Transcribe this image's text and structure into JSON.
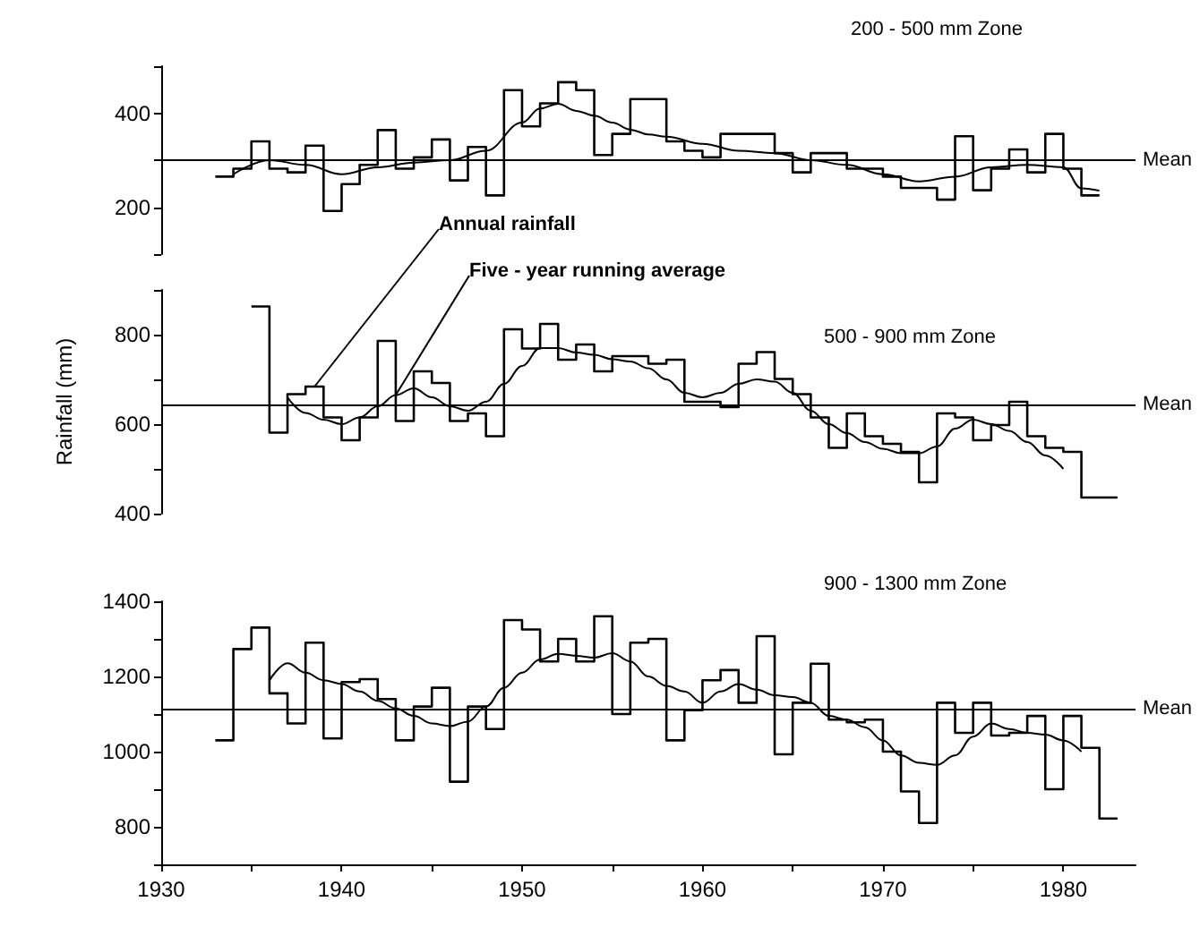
{
  "chart_data": [
    {
      "type": "step",
      "title": "200 - 500 mm Zone",
      "xlim": [
        1930,
        1984
      ],
      "ylim": [
        100,
        500
      ],
      "yticks": [
        {
          "value": 100,
          "label": null
        },
        200,
        {
          "value": 300,
          "label": null
        },
        400,
        {
          "value": 500,
          "label": null
        }
      ],
      "tick_labels": "y",
      "grid": false,
      "marker": "none",
      "ref_lines": [
        {
          "axis": "y",
          "value": 300,
          "label": "Mean"
        }
      ],
      "series": [
        {
          "type": "step",
          "color": "#000000",
          "x": [
            1933,
            1934,
            1935,
            1936,
            1937,
            1938,
            1939,
            1940,
            1941,
            1942,
            1943,
            1944,
            1945,
            1946,
            1947,
            1948,
            1949,
            1950,
            1951,
            1952,
            1953,
            1954,
            1955,
            1956,
            1957,
            1958,
            1959,
            1960,
            1961,
            1962,
            1963,
            1964,
            1965,
            1966,
            1967,
            1968,
            1969,
            1970,
            1971,
            1972,
            1973,
            1974,
            1975,
            1976,
            1977,
            1978,
            1979,
            1980,
            1981,
            1982
          ],
          "values": [
            265,
            282,
            340,
            282,
            274,
            331,
            192,
            249,
            290,
            364,
            282,
            306,
            344,
            257,
            328,
            225,
            449,
            372,
            421,
            466,
            449,
            311,
            356,
            430,
            430,
            340,
            320,
            306,
            356,
            356,
            356,
            315,
            274,
            315,
            315,
            282,
            282,
            265,
            241,
            241,
            216,
            351,
            236,
            282,
            323,
            274,
            356,
            282,
            225,
            225
          ]
        },
        {
          "type": "line",
          "color": "#000000",
          "x": [
            1934,
            1936,
            1938,
            1940,
            1942,
            1944,
            1946,
            1948,
            1950,
            1951,
            1952,
            1953,
            1954,
            1955,
            1956,
            1957,
            1958,
            1960,
            1962,
            1964,
            1966,
            1968,
            1970,
            1972,
            1974,
            1976,
            1978,
            1980,
            1981,
            1982
          ],
          "values": [
            270,
            300,
            290,
            270,
            285,
            295,
            300,
            320,
            380,
            410,
            420,
            405,
            395,
            380,
            365,
            355,
            350,
            335,
            320,
            315,
            300,
            290,
            270,
            255,
            265,
            285,
            290,
            285,
            240,
            235
          ]
        }
      ]
    },
    {
      "type": "step",
      "title": "500 - 900 mm Zone",
      "ylabel": "Rainfall (mm)",
      "xlim": [
        1930,
        1984
      ],
      "ylim": [
        400,
        900
      ],
      "yticks": [
        400,
        {
          "value": 500,
          "label": null
        },
        600,
        {
          "value": 700,
          "label": null
        },
        800,
        {
          "value": 900,
          "label": null
        }
      ],
      "tick_labels": "y",
      "grid": false,
      "marker": "none",
      "ref_lines": [
        {
          "axis": "y",
          "value": 645,
          "label": "Mean"
        }
      ],
      "series": [
        {
          "type": "step",
          "name": "Annual rainfall",
          "color": "#000000",
          "x": [
            1935,
            1936,
            1937,
            1938,
            1939,
            1940,
            1941,
            1942,
            1943,
            1944,
            1945,
            1946,
            1947,
            1948,
            1949,
            1950,
            1951,
            1952,
            1953,
            1954,
            1955,
            1956,
            1957,
            1958,
            1959,
            1960,
            1961,
            1962,
            1963,
            1964,
            1965,
            1966,
            1967,
            1968,
            1969,
            1970,
            1971,
            1972,
            1973,
            1974,
            1975,
            1976,
            1977,
            1978,
            1979,
            1980,
            1981,
            1982,
            1983
          ],
          "values": [
            863,
            581,
            667,
            684,
            615,
            564,
            615,
            786,
            607,
            718,
            692,
            607,
            624,
            573,
            812,
            769,
            824,
            744,
            778,
            718,
            752,
            752,
            735,
            744,
            650,
            650,
            638,
            735,
            761,
            701,
            667,
            615,
            547,
            624,
            573,
            556,
            538,
            470,
            624,
            615,
            564,
            598,
            650,
            573,
            547,
            538,
            436,
            436,
            436
          ]
        },
        {
          "type": "line",
          "name": "Five - year running average",
          "color": "#000000",
          "x": [
            1937,
            1938,
            1939,
            1940,
            1941,
            1942,
            1943,
            1944,
            1945,
            1946,
            1947,
            1948,
            1949,
            1950,
            1951,
            1952,
            1953,
            1954,
            1955,
            1956,
            1957,
            1958,
            1959,
            1960,
            1961,
            1962,
            1963,
            1964,
            1965,
            1966,
            1967,
            1968,
            1969,
            1970,
            1971,
            1972,
            1973,
            1974,
            1975,
            1976,
            1977,
            1978,
            1979,
            1980
          ],
          "values": [
            660,
            625,
            610,
            600,
            615,
            640,
            665,
            680,
            660,
            640,
            630,
            650,
            690,
            730,
            770,
            770,
            760,
            755,
            745,
            740,
            725,
            700,
            670,
            660,
            670,
            690,
            700,
            695,
            670,
            630,
            600,
            580,
            560,
            545,
            535,
            535,
            550,
            590,
            610,
            600,
            585,
            560,
            530,
            500
          ]
        }
      ]
    },
    {
      "type": "step",
      "title": "900 - 1300 mm Zone",
      "xlim": [
        1930,
        1984
      ],
      "ylim": [
        700,
        1400
      ],
      "xticks": [
        1930,
        {
          "value": 1935,
          "label": null
        },
        1940,
        {
          "value": 1945,
          "label": null
        },
        1950,
        {
          "value": 1955,
          "label": null
        },
        1960,
        {
          "value": 1965,
          "label": null
        },
        1970,
        {
          "value": 1975,
          "label": null
        },
        1980
      ],
      "yticks": [
        {
          "value": 700,
          "label": null
        },
        800,
        {
          "value": 900,
          "label": null
        },
        1000,
        {
          "value": 1100,
          "label": null
        },
        1200,
        {
          "value": 1300,
          "label": null
        },
        1400
      ],
      "grid": false,
      "marker": "none",
      "ref_lines": [
        {
          "axis": "y",
          "value": 1115,
          "label": "Mean"
        }
      ],
      "series": [
        {
          "type": "step",
          "color": "#000000",
          "x": [
            1933,
            1934,
            1935,
            1936,
            1937,
            1938,
            1939,
            1940,
            1941,
            1942,
            1943,
            1944,
            1945,
            1946,
            1947,
            1948,
            1949,
            1950,
            1951,
            1952,
            1953,
            1954,
            1955,
            1956,
            1957,
            1958,
            1959,
            1960,
            1961,
            1962,
            1963,
            1964,
            1965,
            1966,
            1967,
            1968,
            1969,
            1970,
            1971,
            1972,
            1973,
            1974,
            1975,
            1976,
            1977,
            1978,
            1979,
            1980,
            1981,
            1982,
            1983
          ],
          "values": [
            1030,
            1273,
            1330,
            1155,
            1075,
            1290,
            1035,
            1185,
            1193,
            1140,
            1030,
            1120,
            1170,
            920,
            1120,
            1060,
            1350,
            1325,
            1240,
            1300,
            1240,
            1360,
            1100,
            1290,
            1300,
            1030,
            1110,
            1190,
            1217,
            1130,
            1307,
            993,
            1130,
            1234,
            1085,
            1078,
            1085,
            1000,
            894,
            810,
            1130,
            1050,
            1130,
            1043,
            1050,
            1095,
            900,
            1095,
            1010,
            822,
            822
          ]
        },
        {
          "type": "line",
          "color": "#000000",
          "x": [
            1936,
            1937,
            1938,
            1939,
            1940,
            1941,
            1942,
            1943,
            1944,
            1945,
            1946,
            1947,
            1948,
            1949,
            1950,
            1951,
            1952,
            1953,
            1954,
            1955,
            1956,
            1957,
            1958,
            1959,
            1960,
            1961,
            1962,
            1963,
            1964,
            1965,
            1966,
            1967,
            1968,
            1969,
            1970,
            1971,
            1972,
            1973,
            1974,
            1975,
            1976,
            1977,
            1978,
            1979,
            1980,
            1981
          ],
          "values": [
            1190,
            1235,
            1210,
            1190,
            1180,
            1160,
            1135,
            1115,
            1095,
            1075,
            1068,
            1080,
            1120,
            1170,
            1210,
            1245,
            1260,
            1255,
            1250,
            1262,
            1240,
            1200,
            1175,
            1160,
            1130,
            1160,
            1180,
            1165,
            1150,
            1145,
            1130,
            1095,
            1085,
            1065,
            1030,
            990,
            970,
            965,
            990,
            1040,
            1075,
            1060,
            1050,
            1045,
            1030,
            1000
          ]
        }
      ]
    }
  ]
}
